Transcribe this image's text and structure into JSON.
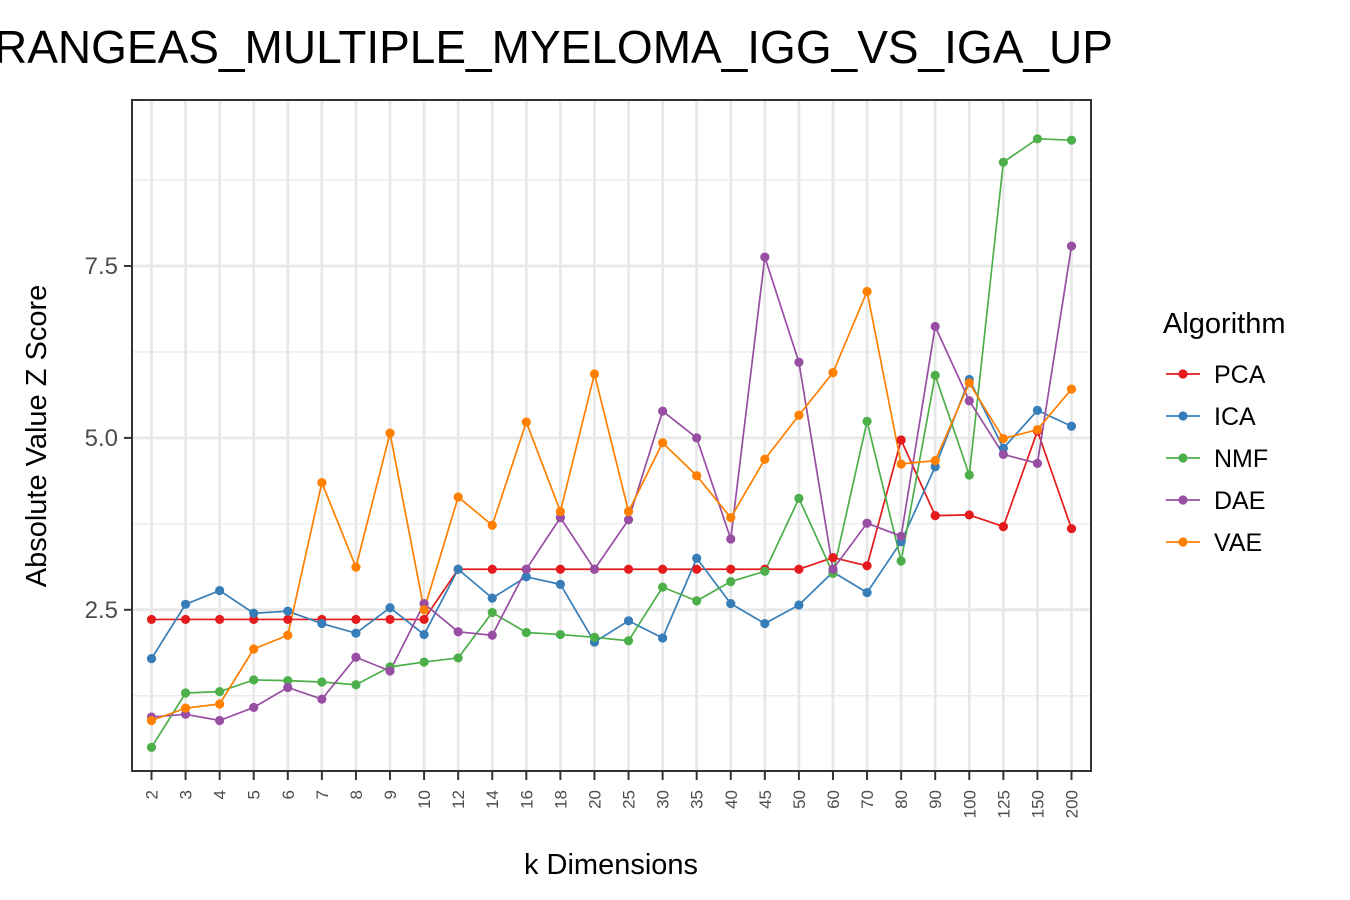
{
  "chart_data": {
    "type": "line",
    "title": "RANGEAS_MULTIPLE_MYELOMA_IGG_VS_IGA_UP",
    "xlabel": "k Dimensions",
    "ylabel": "Absolute Value Z Score",
    "categories": [
      "2",
      "3",
      "4",
      "5",
      "6",
      "7",
      "8",
      "9",
      "10",
      "12",
      "14",
      "16",
      "18",
      "20",
      "25",
      "30",
      "35",
      "40",
      "45",
      "50",
      "60",
      "70",
      "80",
      "90",
      "100",
      "125",
      "150",
      "200"
    ],
    "yticks": [
      2.5,
      5.0,
      7.5
    ],
    "ytick_labels": [
      "2.5",
      "5.0",
      "7.5"
    ],
    "ylim": [
      0.17,
      9.9
    ],
    "grid": true,
    "legend": {
      "title": "Algorithm",
      "placement": "right"
    },
    "series": [
      {
        "name": "PCA",
        "color": "#e41a1c",
        "values": [
          2.36,
          2.36,
          2.36,
          2.36,
          2.36,
          2.36,
          2.36,
          2.36,
          2.36,
          3.09,
          3.09,
          3.09,
          3.09,
          3.09,
          3.09,
          3.09,
          3.09,
          3.09,
          3.09,
          3.09,
          3.26,
          3.14,
          4.97,
          3.87,
          3.88,
          3.71,
          5.1,
          3.68
        ]
      },
      {
        "name": "ICA",
        "color": "#377eb8",
        "values": [
          1.79,
          2.58,
          2.78,
          2.45,
          2.48,
          2.3,
          2.16,
          2.53,
          2.14,
          3.09,
          2.67,
          2.98,
          2.87,
          2.03,
          2.34,
          2.09,
          3.25,
          2.59,
          2.3,
          2.57,
          3.05,
          2.75,
          3.49,
          4.58,
          5.85,
          4.85,
          5.4,
          5.17
        ]
      },
      {
        "name": "NMF",
        "color": "#4daf4a",
        "values": [
          0.5,
          1.29,
          1.31,
          1.48,
          1.47,
          1.45,
          1.41,
          1.67,
          1.74,
          1.8,
          2.46,
          2.17,
          2.14,
          2.1,
          2.05,
          2.83,
          2.63,
          2.91,
          3.06,
          4.12,
          3.03,
          5.24,
          3.21,
          5.91,
          4.46,
          9.01,
          9.35,
          9.33
        ]
      },
      {
        "name": "DAE",
        "color": "#984ea3",
        "values": [
          0.94,
          0.98,
          0.89,
          1.08,
          1.37,
          1.2,
          1.81,
          1.61,
          2.59,
          2.18,
          2.13,
          3.09,
          3.84,
          3.09,
          3.81,
          5.39,
          5.0,
          3.53,
          7.63,
          6.1,
          3.09,
          3.76,
          3.57,
          6.62,
          5.54,
          4.76,
          4.63,
          7.79
        ]
      },
      {
        "name": "VAE",
        "color": "#ff7f00",
        "values": [
          0.89,
          1.07,
          1.13,
          1.93,
          2.13,
          4.35,
          3.12,
          5.07,
          2.5,
          4.14,
          3.73,
          5.23,
          3.93,
          5.93,
          3.93,
          4.93,
          4.45,
          3.84,
          4.69,
          5.33,
          5.95,
          7.13,
          4.62,
          4.67,
          5.8,
          4.99,
          5.12,
          5.71
        ]
      }
    ]
  }
}
